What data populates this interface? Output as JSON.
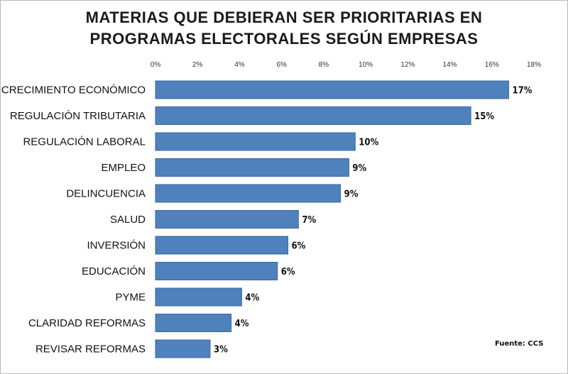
{
  "title_lines": [
    "MATERIAS QUE DEBIERAN SER PRIORITARIAS EN",
    "PROGRAMAS ELECTORALES SEGÚN EMPRESAS"
  ],
  "source": "Fuente:  CCS",
  "colors": {
    "bar": "#4f81bd",
    "bar_edge": "#3a6aa3",
    "grid": "#cccccc"
  },
  "chart_data": {
    "type": "bar",
    "orientation": "horizontal",
    "title": "MATERIAS QUE DEBIERAN SER PRIORITARIAS EN PROGRAMAS ELECTORALES SEGÚN EMPRESAS",
    "categories": [
      "CRECIMIENTO ECONÓMICO",
      "REGULACIÓN TRIBUTARIA",
      "REGULACIÓN LABORAL",
      "EMPLEO",
      "DELINCUENCIA",
      "SALUD",
      "INVERSIÓN",
      "EDUCACIÓN",
      "PYME",
      "CLARIDAD REFORMAS",
      "REVISAR REFORMAS"
    ],
    "values": [
      16.8,
      15.0,
      9.5,
      9.2,
      8.8,
      6.8,
      6.3,
      5.8,
      4.1,
      3.6,
      2.6
    ],
    "value_labels": [
      "17%",
      "15%",
      "10%",
      "9%",
      "9%",
      "7%",
      "6%",
      "6%",
      "4%",
      "4%",
      "3%"
    ],
    "xlim": [
      0,
      18
    ],
    "xticks": [
      "0%",
      "2%",
      "4%",
      "6%",
      "8%",
      "10%",
      "12%",
      "14%",
      "16%",
      "18%"
    ],
    "xaxis_position": "top",
    "grid": false,
    "legend": "none"
  }
}
